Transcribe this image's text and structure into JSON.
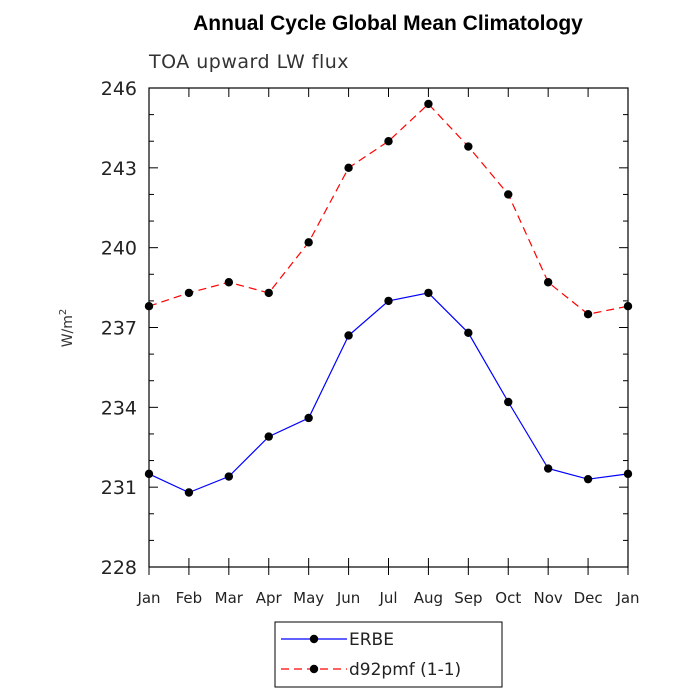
{
  "chart_data": {
    "type": "line",
    "title": "Annual Cycle Global Mean Climatology",
    "subtitle": "TOA upward LW flux",
    "ylabel": "W/m",
    "ylabel_sup": "2",
    "xlabel": "",
    "categories": [
      "Jan",
      "Feb",
      "Mar",
      "Apr",
      "May",
      "Jun",
      "Jul",
      "Aug",
      "Sep",
      "Oct",
      "Nov",
      "Dec",
      "Jan"
    ],
    "ylim": [
      228,
      246
    ],
    "yticks": [
      228,
      231,
      234,
      237,
      240,
      243,
      246
    ],
    "grid": false,
    "legend_position": "bottom-center",
    "series": [
      {
        "name": "ERBE",
        "color": "#0000ff",
        "dash": "solid",
        "marker": "circle",
        "values": [
          231.5,
          230.8,
          231.4,
          232.9,
          233.6,
          236.7,
          238.0,
          238.3,
          236.8,
          234.2,
          231.7,
          231.3,
          231.5
        ]
      },
      {
        "name": "d92pmf (1-1)",
        "color": "#ff0000",
        "dash": "dashed",
        "marker": "circle",
        "values": [
          237.8,
          238.3,
          238.7,
          238.3,
          240.2,
          243.0,
          244.0,
          245.4,
          243.8,
          242.0,
          238.7,
          237.5,
          237.8
        ]
      }
    ]
  }
}
